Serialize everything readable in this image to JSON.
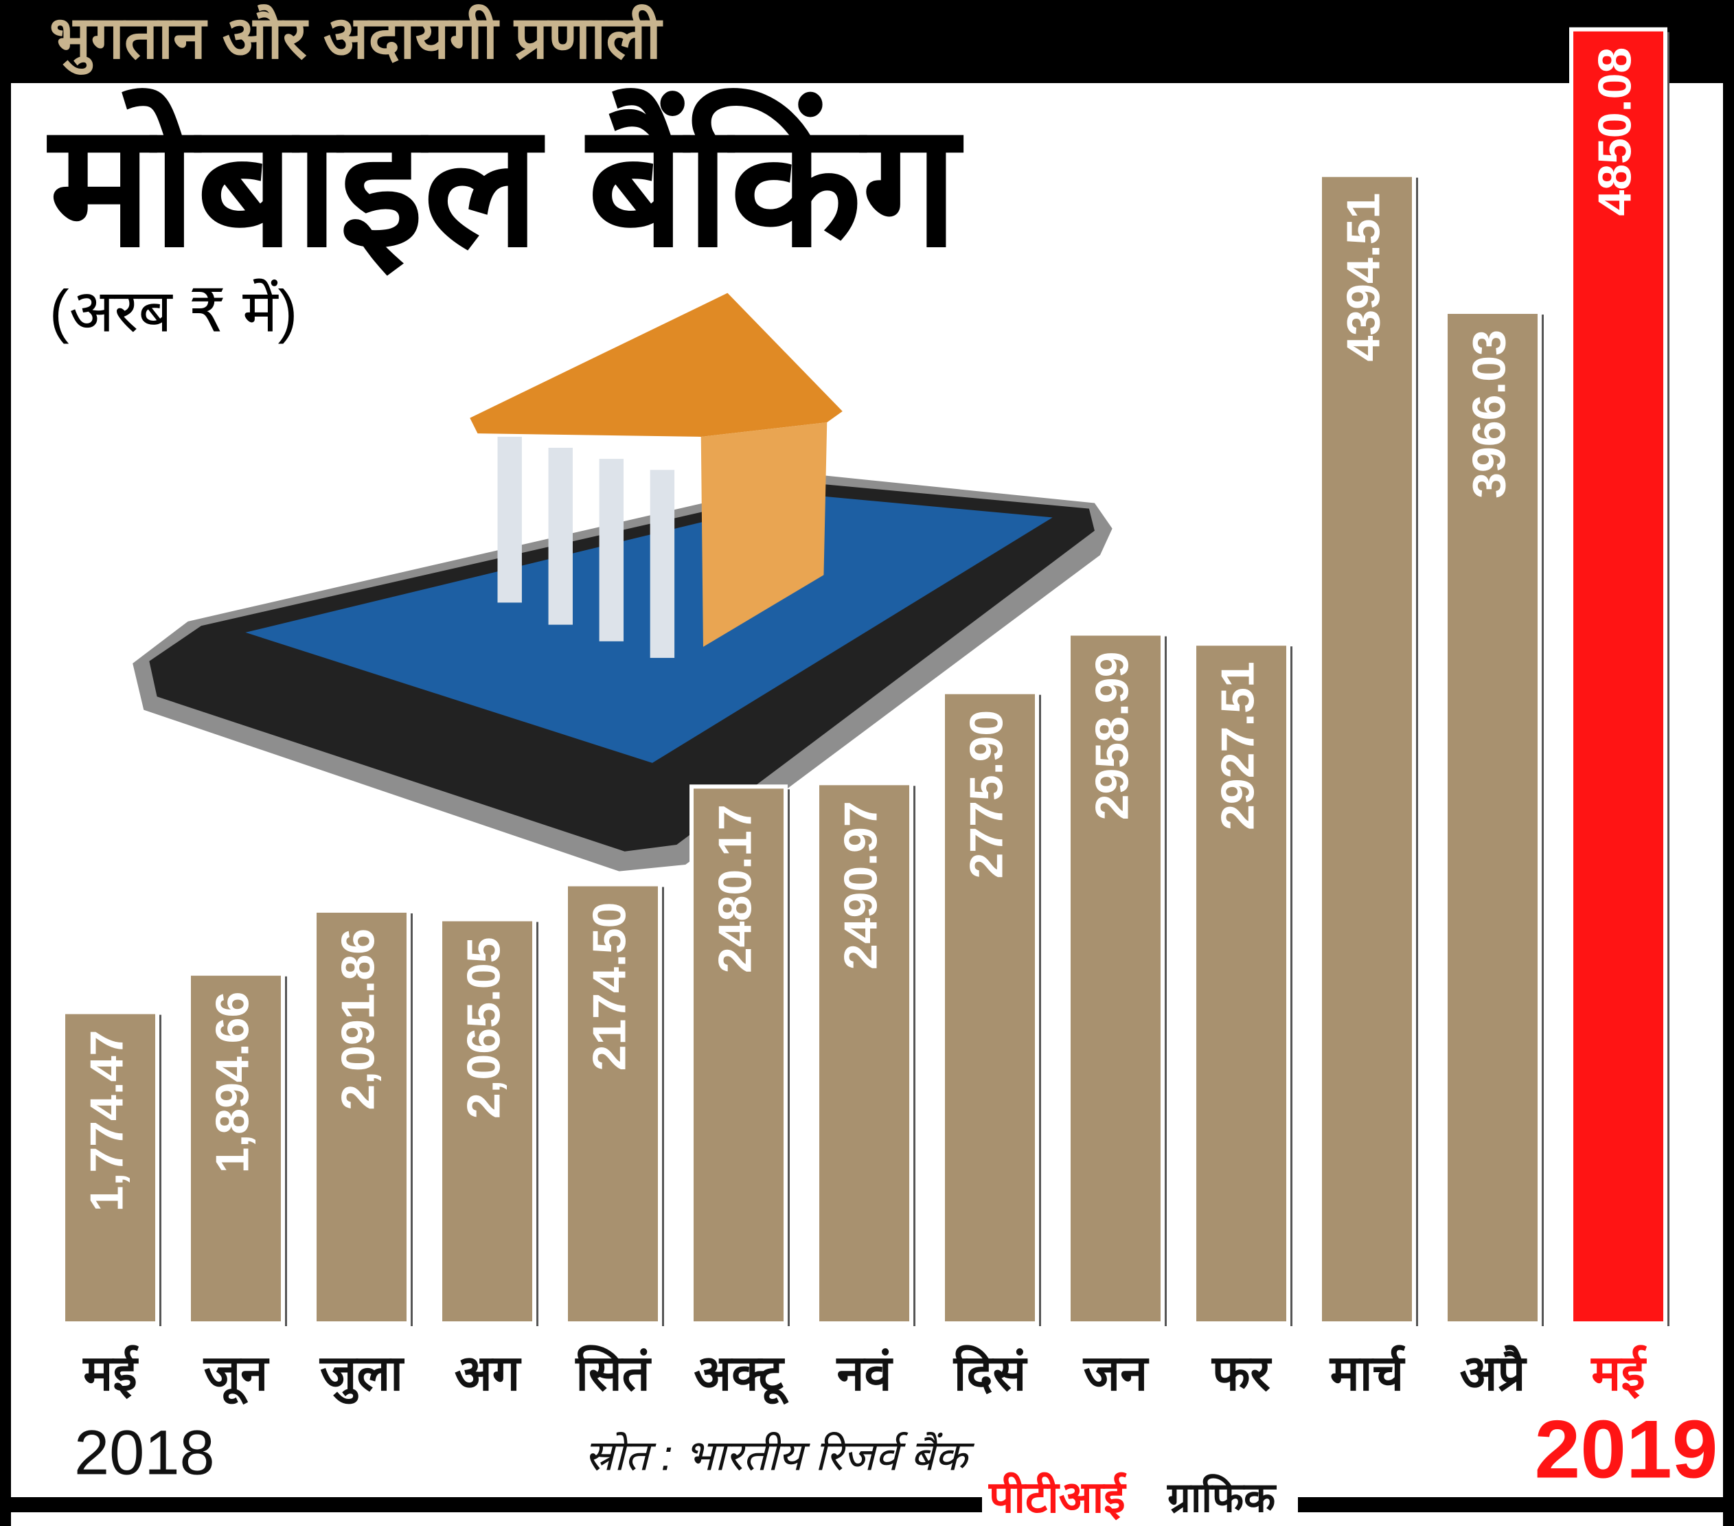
{
  "header": "भुगतान और अदायगी प्रणाली",
  "source": "स्रोत : भारतीय रिजर्व बैंक",
  "credit_brand": "पीटीआई",
  "credit_label": "ग्राफिक",
  "start_year": "2018",
  "end_year": "2019",
  "chart_data": {
    "type": "bar",
    "title": "मोबाइल बैंकिंग",
    "subtitle": "(अरब ₹ में)",
    "categories": [
      "मई",
      "जून",
      "जुला",
      "अग",
      "सितं",
      "अक्टू",
      "नवं",
      "दिसं",
      "जन",
      "फर",
      "मार्च",
      "अप्रै",
      "मई"
    ],
    "values": [
      1774.47,
      1894.66,
      2091.86,
      2065.05,
      2174.5,
      2480.17,
      2490.97,
      2775.9,
      2958.99,
      2927.51,
      4394.51,
      3966.03,
      4850.08
    ],
    "value_labels": [
      "1,774.47",
      "1,894.66",
      "2,091.86",
      "2,065.05",
      "2174.50",
      "2480.17",
      "2490.97",
      "2775.90",
      "2958.99",
      "2927.51",
      "4394.51",
      "3966.03",
      "4850.08"
    ],
    "colors": [
      "#a8916f",
      "#a8916f",
      "#a8916f",
      "#a8916f",
      "#a8916f",
      "#a8916f",
      "#a8916f",
      "#a8916f",
      "#a8916f",
      "#a8916f",
      "#a8916f",
      "#a8916f",
      "#ff1414"
    ],
    "label_colors": [
      "#111111",
      "#111111",
      "#111111",
      "#111111",
      "#111111",
      "#111111",
      "#111111",
      "#111111",
      "#111111",
      "#111111",
      "#111111",
      "#111111",
      "#ff1414"
    ],
    "ylim": [
      800,
      5000
    ]
  }
}
